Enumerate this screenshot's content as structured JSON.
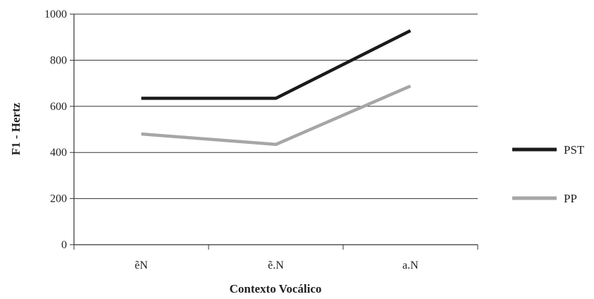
{
  "chart_data": {
    "type": "line",
    "categories": [
      "ẽN",
      "ẽ.N",
      "a.N"
    ],
    "ylim": [
      0,
      1000
    ],
    "yticks": [
      0,
      200,
      400,
      600,
      800,
      1000
    ],
    "ylabel": "F1 - Hertz",
    "xlabel": "Contexto Vocálico",
    "grid": true,
    "legend_position": "right",
    "series": [
      {
        "name": "PST",
        "values": [
          635,
          635,
          928
        ],
        "color": "#1a1a1a"
      },
      {
        "name": "PP",
        "values": [
          480,
          435,
          688
        ],
        "color": "#a6a6a6"
      }
    ]
  }
}
